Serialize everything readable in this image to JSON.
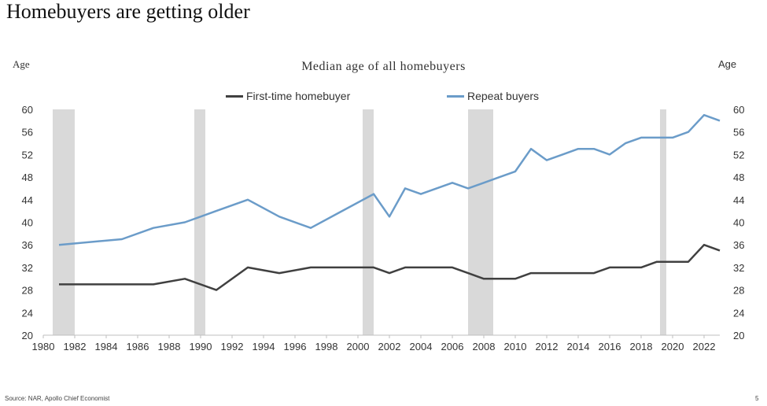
{
  "page": {
    "title": "Homebuyers are getting older",
    "source": "Source: NAR, Apollo Chief Economist",
    "page_number": "5"
  },
  "chart_data": {
    "type": "line",
    "title": "Median age of all homebuyers",
    "ylabel_left": "Age",
    "ylabel_right": "Age",
    "xlim": [
      1980,
      2023
    ],
    "ylim": [
      20,
      60
    ],
    "x_ticks": [
      "1980",
      "1982",
      "1984",
      "1986",
      "1988",
      "1990",
      "1992",
      "1994",
      "1996",
      "1998",
      "2000",
      "2002",
      "2004",
      "2006",
      "2008",
      "2010",
      "2012",
      "2014",
      "2016",
      "2018",
      "2020",
      "2022"
    ],
    "y_ticks": [
      "20",
      "24",
      "28",
      "32",
      "36",
      "40",
      "44",
      "48",
      "52",
      "56",
      "60"
    ],
    "legend_position": "top-center",
    "recessions": [
      [
        1980.6,
        1982.0
      ],
      [
        1989.6,
        1990.3
      ],
      [
        2000.3,
        2001.0
      ],
      [
        2007.0,
        2008.6
      ],
      [
        2019.2,
        2019.6
      ]
    ],
    "series": [
      {
        "name": "First-time homebuyer",
        "color": "#404040",
        "x": [
          1981,
          1985,
          1987,
          1989,
          1991,
          1993,
          1995,
          1997,
          1999,
          2001,
          2002,
          2003,
          2004,
          2005,
          2006,
          2007,
          2008,
          2009,
          2010,
          2011,
          2012,
          2013,
          2014,
          2015,
          2016,
          2017,
          2018,
          2019,
          2020,
          2021,
          2022,
          2023
        ],
        "values": [
          29,
          29,
          29,
          30,
          28,
          32,
          31,
          32,
          32,
          32,
          31,
          32,
          32,
          32,
          32,
          31,
          30,
          30,
          30,
          31,
          31,
          31,
          31,
          31,
          32,
          32,
          32,
          33,
          33,
          33,
          36,
          35
        ]
      },
      {
        "name": "Repeat buyers",
        "color": "#6b9cc9",
        "x": [
          1981,
          1985,
          1987,
          1989,
          1991,
          1993,
          1995,
          1997,
          1999,
          2001,
          2002,
          2003,
          2004,
          2005,
          2006,
          2007,
          2008,
          2009,
          2010,
          2011,
          2012,
          2013,
          2014,
          2015,
          2016,
          2017,
          2018,
          2019,
          2020,
          2021,
          2022,
          2023
        ],
        "values": [
          36,
          37,
          39,
          40,
          42,
          44,
          41,
          39,
          42,
          45,
          41,
          46,
          45,
          46,
          47,
          46,
          47,
          48,
          49,
          53,
          51,
          52,
          53,
          53,
          52,
          54,
          55,
          55,
          55,
          56,
          59,
          58
        ]
      }
    ]
  }
}
